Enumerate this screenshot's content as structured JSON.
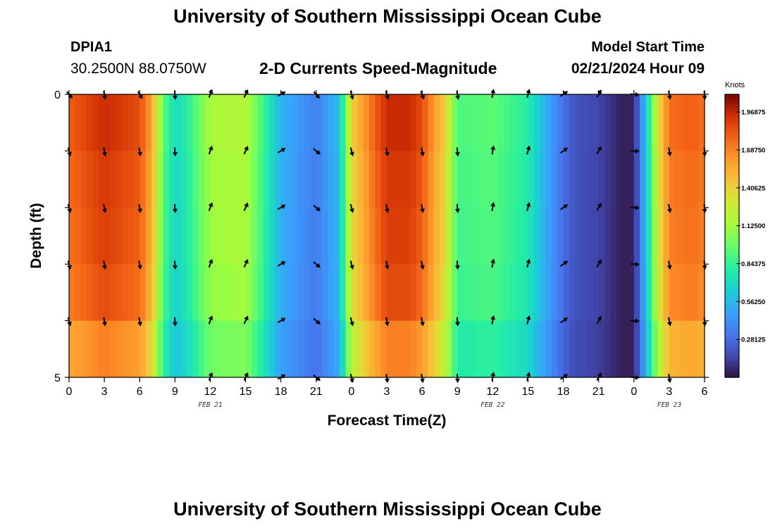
{
  "header": {
    "title": "University of Southern Mississippi Ocean Cube",
    "station_id": "DPIA1",
    "station_coords": "30.2500N  88.0750W",
    "subtitle": "2-D Currents Speed-Magnitude",
    "model_start_label": "Model Start Time",
    "model_start_value": "02/21/2024 Hour 09"
  },
  "footer": {
    "title": "University of Southern Mississippi Ocean Cube"
  },
  "chart_data": {
    "type": "heatmap",
    "title": "2-D Currents Speed-Magnitude",
    "xlabel": "Forecast Time(Z)",
    "ylabel": "Depth (ft)",
    "x_tick_labels": [
      "0",
      "3",
      "6",
      "9",
      "12",
      "15",
      "18",
      "21",
      "0",
      "3",
      "6",
      "9",
      "12",
      "15",
      "18",
      "21",
      "0",
      "3",
      "6"
    ],
    "x_hours": [
      0,
      3,
      6,
      9,
      12,
      15,
      18,
      21,
      24,
      27,
      30,
      33,
      36,
      39,
      42,
      45,
      48,
      51,
      54
    ],
    "x_range_hours": [
      0,
      54
    ],
    "date_labels": [
      {
        "label": "FEB 21",
        "hour": 12
      },
      {
        "label": "FEB 22",
        "hour": 36
      },
      {
        "label": "FEB 23",
        "hour": 51
      }
    ],
    "y_tick_labels": [
      "0",
      "5"
    ],
    "y_range": [
      0,
      5
    ],
    "depth_levels": [
      0,
      1,
      2,
      3,
      4,
      5
    ],
    "colorbar": {
      "unit": "Knots",
      "min": 0,
      "max": 2.1,
      "tick_labels": [
        "1.96875",
        "1.68750",
        "1.40625",
        "1.12500",
        "0.84375",
        "0.56250",
        "0.28125"
      ],
      "tick_values": [
        1.96875,
        1.6875,
        1.40625,
        1.125,
        0.84375,
        0.5625,
        0.28125
      ],
      "colormap": "turbo"
    },
    "speed_profile": {
      "hours": [
        0,
        3,
        6,
        7,
        8,
        9,
        10,
        12,
        15,
        18,
        21,
        23,
        24,
        26,
        27,
        29,
        30,
        32,
        33,
        36,
        39,
        41,
        42,
        43,
        45,
        47,
        48,
        49,
        50,
        51,
        53,
        54
      ],
      "values": [
        1.8,
        1.95,
        1.85,
        1.6,
        0.95,
        0.7,
        0.8,
        1.15,
        1.2,
        0.55,
        0.35,
        0.6,
        1.4,
        1.8,
        1.95,
        1.95,
        1.85,
        1.4,
        0.9,
        0.95,
        0.8,
        0.45,
        0.3,
        0.2,
        0.15,
        0.04,
        0.05,
        0.6,
        1.3,
        1.75,
        1.8,
        1.75
      ]
    },
    "depth_factor": [
      1.0,
      0.98,
      0.97,
      0.95,
      0.87,
      0.75
    ],
    "arrows": {
      "hours": [
        0,
        3,
        6,
        9,
        12,
        15,
        18,
        21,
        24,
        27,
        30,
        33,
        36,
        39,
        42,
        45,
        48,
        51,
        54
      ],
      "depths": [
        0,
        1,
        2,
        3,
        4,
        5
      ],
      "directions_deg": [
        165,
        170,
        170,
        175,
        20,
        25,
        60,
        130,
        165,
        170,
        170,
        175,
        10,
        15,
        55,
        30,
        95,
        170,
        175
      ],
      "surface_directions_deg": [
        140,
        170,
        150,
        175,
        20,
        25,
        60,
        140,
        165,
        165,
        160,
        170,
        10,
        15,
        55,
        30,
        95,
        170,
        175
      ]
    }
  }
}
